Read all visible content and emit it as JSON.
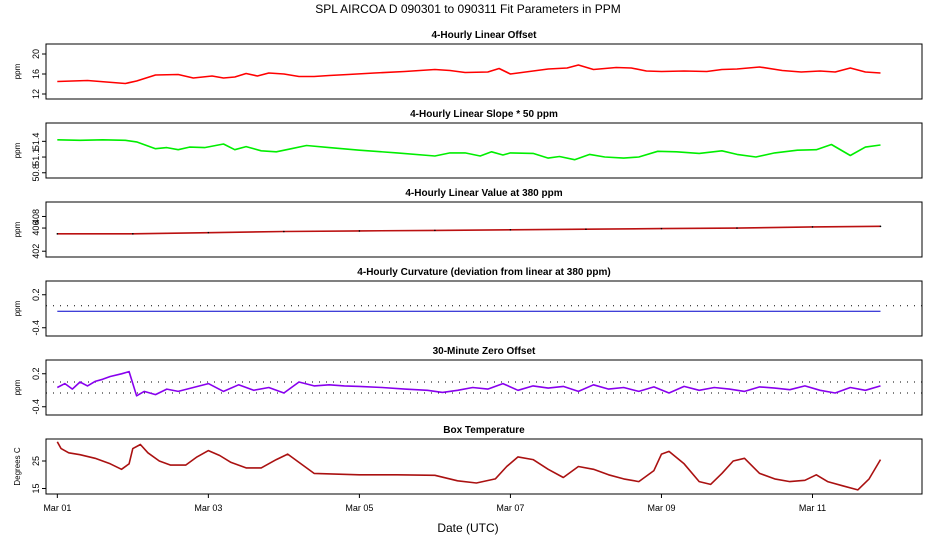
{
  "header": {
    "title": "SPL   AIRCOA D   090301 to 090311   Fit Parameters in PPM"
  },
  "x_axis": {
    "label": "Date (UTC)",
    "ticks": [
      {
        "label": "Mar 01",
        "day": 1
      },
      {
        "label": "Mar 03",
        "day": 3
      },
      {
        "label": "Mar 05",
        "day": 5
      },
      {
        "label": "Mar 07",
        "day": 7
      },
      {
        "label": "Mar 09",
        "day": 9
      },
      {
        "label": "Mar 11",
        "day": 11
      }
    ],
    "range_days": [
      0.85,
      12.45
    ]
  },
  "chart_data": [
    {
      "type": "line",
      "title": "4-Hourly Linear Offset",
      "ylabel": "ppm",
      "ylim": [
        11,
        22
      ],
      "yticks": [
        {
          "label": "12",
          "value": 12
        },
        {
          "label": "16",
          "value": 16
        },
        {
          "label": "20",
          "value": 20
        }
      ],
      "color": "#ff0000",
      "series": [
        {
          "x": [
            1.0,
            1.4,
            1.9,
            2.05,
            2.3,
            2.6,
            2.8,
            3.05,
            3.2,
            3.35,
            3.5,
            3.65,
            3.8,
            4.0,
            4.2,
            4.4,
            4.6,
            4.85,
            5.2,
            5.6,
            6.0,
            6.2,
            6.4,
            6.7,
            6.85,
            7.0,
            7.3,
            7.5,
            7.75,
            7.9,
            8.1,
            8.4,
            8.6,
            8.8,
            9.0,
            9.3,
            9.6,
            9.8,
            10.0,
            10.3,
            10.6,
            10.85,
            11.1,
            11.3,
            11.5,
            11.7,
            11.9
          ],
          "y": [
            14.5,
            14.7,
            14.1,
            14.6,
            15.8,
            15.9,
            15.2,
            15.6,
            15.2,
            15.4,
            16.1,
            15.6,
            16.2,
            16.0,
            15.5,
            15.5,
            15.7,
            15.9,
            16.2,
            16.5,
            16.9,
            16.7,
            16.3,
            16.4,
            17.1,
            16.0,
            16.6,
            17.0,
            17.2,
            17.8,
            16.9,
            17.3,
            17.2,
            16.6,
            16.5,
            16.6,
            16.5,
            16.9,
            17.0,
            17.4,
            16.7,
            16.4,
            16.6,
            16.4,
            17.2,
            16.4,
            16.2
          ]
        }
      ]
    },
    {
      "type": "line",
      "title": "4-Hourly Linear Slope * 50 ppm",
      "ylabel": "ppm",
      "ylim": [
        50.7,
        51.75
      ],
      "yticks": [
        {
          "label": "50.8",
          "value": 50.8
        },
        {
          "label": "51.1",
          "value": 51.1
        },
        {
          "label": "51.4",
          "value": 51.4
        }
      ],
      "color": "#00ee00",
      "series": [
        {
          "x": [
            1.0,
            1.3,
            1.6,
            1.9,
            2.05,
            2.3,
            2.45,
            2.6,
            2.75,
            2.95,
            3.2,
            3.35,
            3.5,
            3.7,
            3.9,
            4.1,
            4.3,
            4.6,
            5.0,
            5.5,
            6.0,
            6.2,
            6.4,
            6.6,
            6.75,
            6.9,
            7.0,
            7.3,
            7.5,
            7.65,
            7.85,
            8.05,
            8.25,
            8.5,
            8.7,
            8.95,
            9.2,
            9.5,
            9.8,
            10.0,
            10.25,
            10.5,
            10.8,
            11.05,
            11.25,
            11.5,
            11.7,
            11.9
          ],
          "y": [
            51.43,
            51.42,
            51.43,
            51.42,
            51.39,
            51.26,
            51.28,
            51.24,
            51.29,
            51.28,
            51.35,
            51.24,
            51.3,
            51.22,
            51.2,
            51.26,
            51.32,
            51.28,
            51.23,
            51.18,
            51.12,
            51.18,
            51.18,
            51.12,
            51.2,
            51.14,
            51.18,
            51.17,
            51.08,
            51.11,
            51.05,
            51.15,
            51.1,
            51.08,
            51.1,
            51.21,
            51.2,
            51.17,
            51.22,
            51.15,
            51.1,
            51.18,
            51.23,
            51.24,
            51.34,
            51.13,
            51.29,
            51.33
          ]
        }
      ]
    },
    {
      "type": "line",
      "title": "4-Hourly Linear Value at 380 ppm",
      "ylabel": "ppm",
      "ylim": [
        401,
        410.5
      ],
      "yticks": [
        {
          "label": "402",
          "value": 402
        },
        {
          "label": "406",
          "value": 406
        },
        {
          "label": "408",
          "value": 408
        }
      ],
      "color": "#bb1111",
      "series": [
        {
          "x": [
            1.0,
            2.0,
            3.0,
            4.0,
            5.0,
            6.0,
            7.0,
            8.0,
            9.0,
            10.0,
            11.0,
            11.9
          ],
          "y": [
            405.0,
            405.0,
            405.2,
            405.4,
            405.5,
            405.6,
            405.7,
            405.8,
            405.9,
            406.0,
            406.2,
            406.3
          ]
        }
      ]
    },
    {
      "type": "line",
      "title": "4-Hourly Curvature (deviation from linear at 380 ppm)",
      "ylabel": "ppm",
      "ylim": [
        -0.55,
        0.45
      ],
      "yticks": [
        {
          "label": "-0.4",
          "value": -0.4
        },
        {
          "label": "0.2",
          "value": 0.2
        }
      ],
      "color": "#0000cc",
      "series": [
        {
          "x": [
            1.0,
            11.9
          ],
          "y": [
            -0.1,
            -0.1
          ]
        }
      ],
      "reference_line": {
        "y": 0.0,
        "style": "dotted"
      }
    },
    {
      "type": "line",
      "title": "30-Minute Zero Offset",
      "ylabel": "ppm",
      "ylim": [
        -0.55,
        0.45
      ],
      "yticks": [
        {
          "label": "-0.4",
          "value": -0.4
        },
        {
          "label": "0.2",
          "value": 0.2
        }
      ],
      "color": "#8800ee",
      "series": [
        {
          "x": [
            1.0,
            1.1,
            1.2,
            1.3,
            1.4,
            1.5,
            1.6,
            1.7,
            1.85,
            1.95,
            2.05,
            2.15,
            2.3,
            2.45,
            2.6,
            2.8,
            3.0,
            3.2,
            3.4,
            3.6,
            3.8,
            4.0,
            4.2,
            4.4,
            4.6,
            4.8,
            5.0,
            5.3,
            5.6,
            5.9,
            6.1,
            6.3,
            6.5,
            6.7,
            6.9,
            7.1,
            7.3,
            7.5,
            7.7,
            7.9,
            8.1,
            8.3,
            8.5,
            8.7,
            8.9,
            9.1,
            9.3,
            9.5,
            9.7,
            9.9,
            10.1,
            10.3,
            10.5,
            10.7,
            10.9,
            11.1,
            11.3,
            11.5,
            11.7,
            11.9
          ],
          "y": [
            -0.05,
            0.02,
            -0.08,
            0.05,
            -0.02,
            0.06,
            0.1,
            0.15,
            0.2,
            0.24,
            -0.2,
            -0.12,
            -0.18,
            -0.08,
            -0.12,
            -0.05,
            0.02,
            -0.12,
            0.0,
            -0.1,
            -0.05,
            -0.15,
            0.05,
            -0.02,
            0.0,
            -0.02,
            -0.03,
            -0.05,
            -0.08,
            -0.1,
            -0.14,
            -0.1,
            -0.05,
            -0.08,
            0.02,
            -0.1,
            -0.02,
            -0.06,
            -0.03,
            -0.12,
            0.0,
            -0.08,
            -0.05,
            -0.12,
            -0.04,
            -0.15,
            -0.03,
            -0.1,
            -0.05,
            -0.08,
            -0.12,
            -0.04,
            -0.06,
            -0.09,
            -0.02,
            -0.1,
            -0.15,
            -0.05,
            -0.1,
            -0.02
          ]
        }
      ],
      "reference_lines": [
        {
          "y": 0.05,
          "style": "dotted"
        },
        {
          "y": -0.15,
          "style": "dotted"
        }
      ]
    },
    {
      "type": "line",
      "title": "Box Temperature",
      "ylabel": "Degrees C",
      "ylim": [
        13,
        33
      ],
      "yticks": [
        {
          "label": "15",
          "value": 15
        },
        {
          "label": "25",
          "value": 25
        }
      ],
      "color": "#aa1111",
      "series": [
        {
          "x": [
            1.0,
            1.05,
            1.15,
            1.3,
            1.5,
            1.7,
            1.85,
            1.95,
            2.0,
            2.1,
            2.2,
            2.35,
            2.5,
            2.7,
            2.85,
            3.0,
            3.15,
            3.3,
            3.5,
            3.7,
            3.9,
            4.05,
            4.2,
            4.4,
            5.0,
            5.5,
            6.0,
            6.3,
            6.55,
            6.8,
            6.95,
            7.1,
            7.3,
            7.5,
            7.7,
            7.9,
            8.1,
            8.3,
            8.5,
            8.7,
            8.9,
            9.0,
            9.1,
            9.3,
            9.5,
            9.65,
            9.8,
            9.95,
            10.1,
            10.3,
            10.5,
            10.7,
            10.9,
            11.05,
            11.2,
            11.4,
            11.6,
            11.75,
            11.9
          ],
          "y": [
            32.0,
            29.5,
            28.0,
            27.3,
            26.0,
            24.0,
            22.0,
            24.0,
            29.5,
            31.0,
            28.0,
            25.0,
            23.5,
            23.5,
            26.5,
            28.8,
            27.0,
            24.5,
            22.5,
            22.5,
            25.5,
            27.5,
            24.5,
            20.5,
            20.0,
            20.0,
            19.8,
            17.8,
            17.0,
            18.5,
            23.0,
            26.5,
            25.5,
            22.0,
            19.0,
            23.0,
            22.0,
            20.0,
            18.5,
            17.5,
            21.5,
            27.5,
            28.5,
            24.0,
            17.5,
            16.5,
            20.5,
            25.0,
            26.0,
            20.5,
            18.5,
            17.5,
            18.0,
            20.0,
            17.5,
            16.0,
            14.5,
            18.5,
            25.5
          ]
        }
      ]
    }
  ]
}
